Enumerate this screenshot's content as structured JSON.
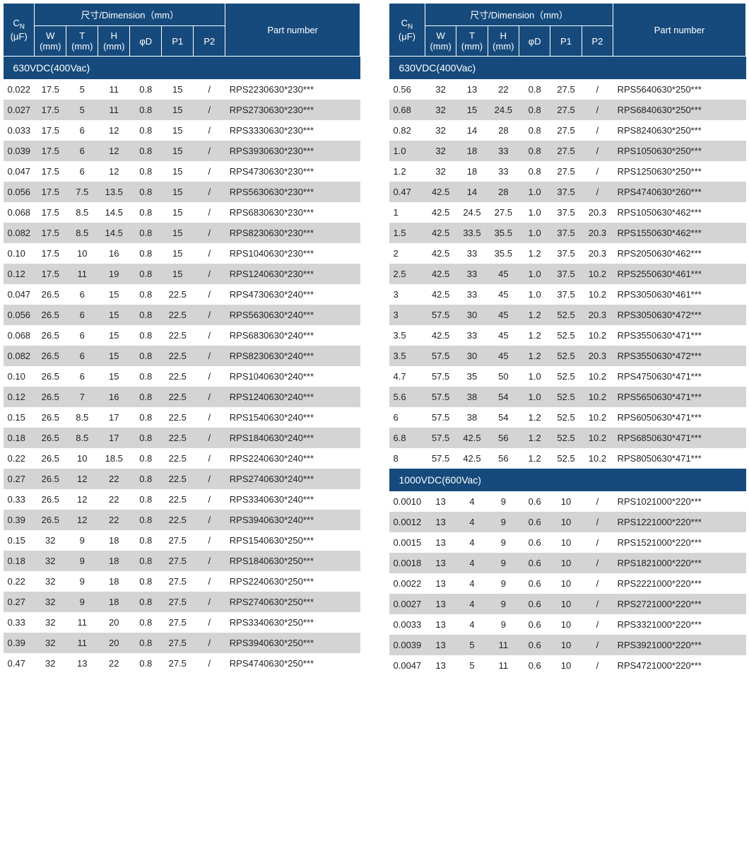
{
  "header": {
    "cn_html": "C<span class='cn-sup'>N</span><br>(μF)",
    "dim_group": "尺寸/Dimension（mm）",
    "part": "Part number",
    "dims": [
      "W<br>(mm)",
      "T<br>(mm)",
      "H<br>(mm)",
      "φD",
      "P1",
      "P2"
    ]
  },
  "colors": {
    "header_bg": "#164a7c",
    "header_fg": "#ffffff",
    "row_odd": "#ffffff",
    "row_even": "#d4d4d4"
  },
  "left": [
    {
      "section": "630VDC(400Vac)"
    },
    {
      "row": [
        "0.022",
        "17.5",
        "5",
        "11",
        "0.8",
        "15",
        "/",
        "RPS2230630*230***"
      ]
    },
    {
      "row": [
        "0.027",
        "17.5",
        "5",
        "11",
        "0.8",
        "15",
        "/",
        "RPS2730630*230***"
      ]
    },
    {
      "row": [
        "0.033",
        "17.5",
        "6",
        "12",
        "0.8",
        "15",
        "/",
        "RPS3330630*230***"
      ]
    },
    {
      "row": [
        "0.039",
        "17.5",
        "6",
        "12",
        "0.8",
        "15",
        "/",
        "RPS3930630*230***"
      ]
    },
    {
      "row": [
        "0.047",
        "17.5",
        "6",
        "12",
        "0.8",
        "15",
        "/",
        "RPS4730630*230***"
      ]
    },
    {
      "row": [
        "0.056",
        "17.5",
        "7.5",
        "13.5",
        "0.8",
        "15",
        "/",
        "RPS5630630*230***"
      ]
    },
    {
      "row": [
        "0.068",
        "17.5",
        "8.5",
        "14.5",
        "0.8",
        "15",
        "/",
        "RPS6830630*230***"
      ]
    },
    {
      "row": [
        "0.082",
        "17.5",
        "8.5",
        "14.5",
        "0.8",
        "15",
        "/",
        "RPS8230630*230***"
      ]
    },
    {
      "row": [
        "0.10",
        "17.5",
        "10",
        "16",
        "0.8",
        "15",
        "/",
        "RPS1040630*230***"
      ]
    },
    {
      "row": [
        "0.12",
        "17.5",
        "11",
        "19",
        "0.8",
        "15",
        "/",
        "RPS1240630*230***"
      ]
    },
    {
      "row": [
        "0.047",
        "26.5",
        "6",
        "15",
        "0.8",
        "22.5",
        "/",
        "RPS4730630*240***"
      ]
    },
    {
      "row": [
        "0.056",
        "26.5",
        "6",
        "15",
        "0.8",
        "22.5",
        "/",
        "RPS5630630*240***"
      ]
    },
    {
      "row": [
        "0.068",
        "26.5",
        "6",
        "15",
        "0.8",
        "22.5",
        "/",
        "RPS6830630*240***"
      ]
    },
    {
      "row": [
        "0.082",
        "26.5",
        "6",
        "15",
        "0.8",
        "22.5",
        "/",
        "RPS8230630*240***"
      ]
    },
    {
      "row": [
        "0.10",
        "26.5",
        "6",
        "15",
        "0.8",
        "22.5",
        "/",
        "RPS1040630*240***"
      ]
    },
    {
      "row": [
        "0.12",
        "26.5",
        "7",
        "16",
        "0.8",
        "22.5",
        "/",
        "RPS1240630*240***"
      ]
    },
    {
      "row": [
        "0.15",
        "26.5",
        "8.5",
        "17",
        "0.8",
        "22.5",
        "/",
        "RPS1540630*240***"
      ]
    },
    {
      "row": [
        "0.18",
        "26.5",
        "8.5",
        "17",
        "0.8",
        "22.5",
        "/",
        "RPS1840630*240***"
      ]
    },
    {
      "row": [
        "0.22",
        "26.5",
        "10",
        "18.5",
        "0.8",
        "22.5",
        "/",
        "RPS2240630*240***"
      ]
    },
    {
      "row": [
        "0.27",
        "26.5",
        "12",
        "22",
        "0.8",
        "22.5",
        "/",
        "RPS2740630*240***"
      ]
    },
    {
      "row": [
        "0.33",
        "26.5",
        "12",
        "22",
        "0.8",
        "22.5",
        "/",
        "RPS3340630*240***"
      ]
    },
    {
      "row": [
        "0.39",
        "26.5",
        "12",
        "22",
        "0.8",
        "22.5",
        "/",
        "RPS3940630*240***"
      ]
    },
    {
      "row": [
        "0.15",
        "32",
        "9",
        "18",
        "0.8",
        "27.5",
        "/",
        "RPS1540630*250***"
      ]
    },
    {
      "row": [
        "0.18",
        "32",
        "9",
        "18",
        "0.8",
        "27.5",
        "/",
        "RPS1840630*250***"
      ]
    },
    {
      "row": [
        "0.22",
        "32",
        "9",
        "18",
        "0.8",
        "27.5",
        "/",
        "RPS2240630*250***"
      ]
    },
    {
      "row": [
        "0.27",
        "32",
        "9",
        "18",
        "0.8",
        "27.5",
        "/",
        "RPS2740630*250***"
      ]
    },
    {
      "row": [
        "0.33",
        "32",
        "11",
        "20",
        "0.8",
        "27.5",
        "/",
        "RPS3340630*250***"
      ]
    },
    {
      "row": [
        "0.39",
        "32",
        "11",
        "20",
        "0.8",
        "27.5",
        "/",
        "RPS3940630*250***"
      ]
    },
    {
      "row": [
        "0.47",
        "32",
        "13",
        "22",
        "0.8",
        "27.5",
        "/",
        "RPS4740630*250***"
      ]
    }
  ],
  "right": [
    {
      "section": "630VDC(400Vac)"
    },
    {
      "row": [
        "0.56",
        "32",
        "13",
        "22",
        "0.8",
        "27.5",
        "/",
        "RPS5640630*250***"
      ]
    },
    {
      "row": [
        "0.68",
        "32",
        "15",
        "24.5",
        "0.8",
        "27.5",
        "/",
        "RPS6840630*250***"
      ]
    },
    {
      "row": [
        "0.82",
        "32",
        "14",
        "28",
        "0.8",
        "27.5",
        "/",
        "RPS8240630*250***"
      ]
    },
    {
      "row": [
        "1.0",
        "32",
        "18",
        "33",
        "0.8",
        "27.5",
        "/",
        "RPS1050630*250***"
      ]
    },
    {
      "row": [
        "1.2",
        "32",
        "18",
        "33",
        "0.8",
        "27.5",
        "/",
        "RPS1250630*250***"
      ]
    },
    {
      "row": [
        "0.47",
        "42.5",
        "14",
        "28",
        "1.0",
        "37.5",
        "/",
        "RPS4740630*260***"
      ]
    },
    {
      "row": [
        "1",
        "42.5",
        "24.5",
        "27.5",
        "1.0",
        "37.5",
        "20.3",
        "RPS1050630*462***"
      ]
    },
    {
      "row": [
        "1.5",
        "42.5",
        "33.5",
        "35.5",
        "1.0",
        "37.5",
        "20.3",
        "RPS1550630*462***"
      ]
    },
    {
      "row": [
        "2",
        "42.5",
        "33",
        "35.5",
        "1.2",
        "37.5",
        "20.3",
        "RPS2050630*462***"
      ]
    },
    {
      "row": [
        "2.5",
        "42.5",
        "33",
        "45",
        "1.0",
        "37.5",
        "10.2",
        "RPS2550630*461***"
      ]
    },
    {
      "row": [
        "3",
        "42.5",
        "33",
        "45",
        "1.0",
        "37.5",
        "10.2",
        "RPS3050630*461***"
      ]
    },
    {
      "row": [
        "3",
        "57.5",
        "30",
        "45",
        "1.2",
        "52.5",
        "20.3",
        "RPS3050630*472***"
      ]
    },
    {
      "row": [
        "3.5",
        "42.5",
        "33",
        "45",
        "1.2",
        "52.5",
        "10.2",
        "RPS3550630*471***"
      ]
    },
    {
      "row": [
        "3.5",
        "57.5",
        "30",
        "45",
        "1.2",
        "52.5",
        "20.3",
        "RPS3550630*472***"
      ]
    },
    {
      "row": [
        "4.7",
        "57.5",
        "35",
        "50",
        "1.0",
        "52.5",
        "10.2",
        "RPS4750630*471***"
      ]
    },
    {
      "row": [
        "5.6",
        "57.5",
        "38",
        "54",
        "1.0",
        "52.5",
        "10.2",
        "RPS5650630*471***"
      ]
    },
    {
      "row": [
        "6",
        "57.5",
        "38",
        "54",
        "1.2",
        "52.5",
        "10.2",
        "RPS6050630*471***"
      ]
    },
    {
      "row": [
        "6.8",
        "57.5",
        "42.5",
        "56",
        "1.2",
        "52.5",
        "10.2",
        "RPS6850630*471***"
      ]
    },
    {
      "row": [
        "8",
        "57.5",
        "42.5",
        "56",
        "1.2",
        "52.5",
        "10.2",
        "RPS8050630*471***"
      ]
    },
    {
      "section": "1000VDC(600Vac)"
    },
    {
      "row": [
        "0.0010",
        "13",
        "4",
        "9",
        "0.6",
        "10",
        "/",
        "RPS1021000*220***"
      ]
    },
    {
      "row": [
        "0.0012",
        "13",
        "4",
        "9",
        "0.6",
        "10",
        "/",
        "RPS1221000*220***"
      ]
    },
    {
      "row": [
        "0.0015",
        "13",
        "4",
        "9",
        "0.6",
        "10",
        "/",
        "RPS1521000*220***"
      ]
    },
    {
      "row": [
        "0.0018",
        "13",
        "4",
        "9",
        "0.6",
        "10",
        "/",
        "RPS1821000*220***"
      ]
    },
    {
      "row": [
        "0.0022",
        "13",
        "4",
        "9",
        "0.6",
        "10",
        "/",
        "RPS2221000*220***"
      ]
    },
    {
      "row": [
        "0.0027",
        "13",
        "4",
        "9",
        "0.6",
        "10",
        "/",
        "RPS2721000*220***"
      ]
    },
    {
      "row": [
        "0.0033",
        "13",
        "4",
        "9",
        "0.6",
        "10",
        "/",
        "RPS3321000*220***"
      ]
    },
    {
      "row": [
        "0.0039",
        "13",
        "5",
        "11",
        "0.6",
        "10",
        "/",
        "RPS3921000*220***"
      ]
    },
    {
      "row": [
        "0.0047",
        "13",
        "5",
        "11",
        "0.6",
        "10",
        "/",
        "RPS4721000*220***"
      ]
    }
  ]
}
